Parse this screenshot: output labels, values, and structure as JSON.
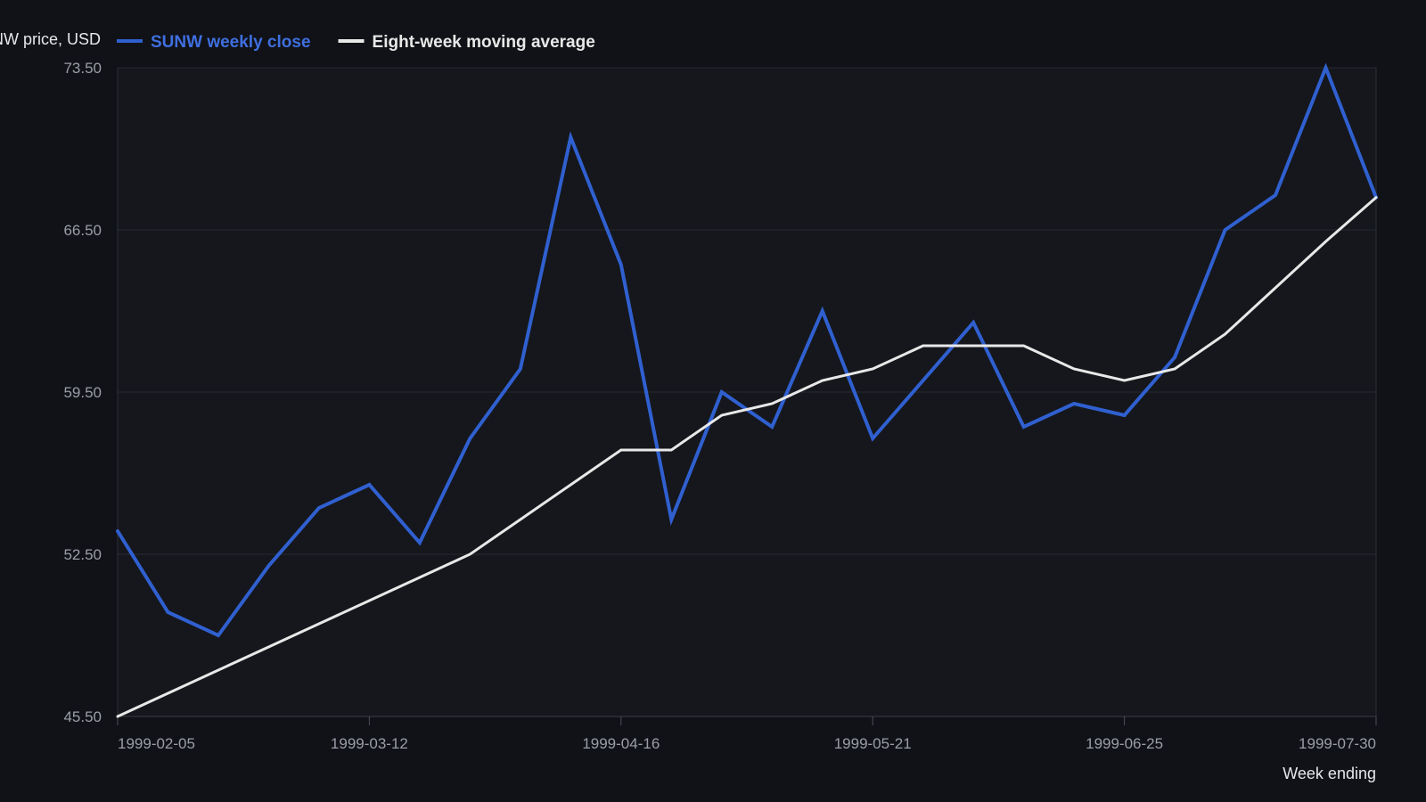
{
  "chart_data": {
    "type": "line",
    "ylabel": "SUNW price, USD",
    "xlabel": "Week ending",
    "ylim": [
      45.5,
      73.5
    ],
    "yticks": [
      "45.50",
      "52.50",
      "59.50",
      "66.50",
      "73.50"
    ],
    "xlim": [
      "1999-02-05",
      "1999-07-30"
    ],
    "xticks": [
      "1999-02-05",
      "1999-03-12",
      "1999-04-16",
      "1999-05-21",
      "1999-06-25",
      "1999-07-30"
    ],
    "grid": true,
    "legend": "top-left",
    "x": [
      "1999-02-05",
      "1999-02-12",
      "1999-02-19",
      "1999-02-26",
      "1999-03-05",
      "1999-03-12",
      "1999-03-19",
      "1999-03-26",
      "1999-04-02",
      "1999-04-09",
      "1999-04-16",
      "1999-04-23",
      "1999-04-30",
      "1999-05-07",
      "1999-05-14",
      "1999-05-21",
      "1999-05-28",
      "1999-06-04",
      "1999-06-11",
      "1999-06-18",
      "1999-06-25",
      "1999-07-02",
      "1999-07-09",
      "1999-07-16",
      "1999-07-23",
      "1999-07-30"
    ],
    "series": [
      {
        "name": "SUNW weekly close",
        "color": "#3060d0",
        "values": [
          53.5,
          50.0,
          49.0,
          52.0,
          54.5,
          55.5,
          53.0,
          57.5,
          60.5,
          70.5,
          65.0,
          54.0,
          59.5,
          58.0,
          63.0,
          57.5,
          60.0,
          62.5,
          58.0,
          59.0,
          58.5,
          61.0,
          66.5,
          68.0,
          73.5,
          67.9
        ]
      },
      {
        "name": "Eight-week moving average",
        "color": "#e8e8e8",
        "values": [
          45.5,
          46.5,
          47.5,
          48.5,
          49.5,
          50.5,
          51.5,
          52.5,
          54.0,
          55.5,
          57.0,
          57.0,
          58.5,
          59.0,
          60.0,
          60.5,
          61.5,
          61.5,
          61.5,
          60.5,
          60.0,
          60.5,
          62.0,
          64.0,
          66.0,
          67.9
        ]
      }
    ]
  }
}
